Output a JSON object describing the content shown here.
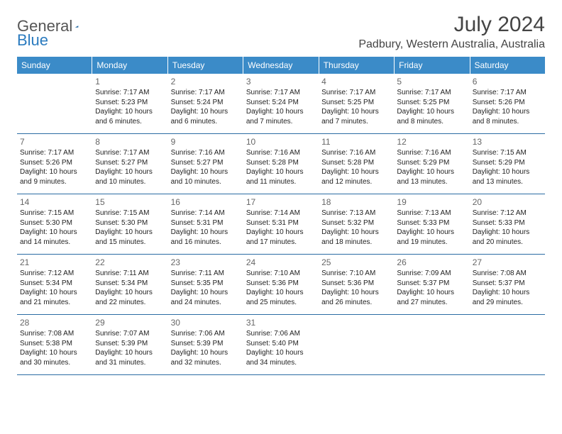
{
  "logo": {
    "text1": "General",
    "text2": "Blue"
  },
  "title": "July 2024",
  "location": "Padbury, Western Australia, Australia",
  "colors": {
    "header_bg": "#3b8bc8",
    "row_border": "#2b6ca3",
    "logo_blue": "#2b7bbf"
  },
  "day_names": [
    "Sunday",
    "Monday",
    "Tuesday",
    "Wednesday",
    "Thursday",
    "Friday",
    "Saturday"
  ],
  "weeks": [
    [
      {
        "num": "",
        "sunrise": "",
        "sunset": "",
        "daylight": ""
      },
      {
        "num": "1",
        "sunrise": "Sunrise: 7:17 AM",
        "sunset": "Sunset: 5:23 PM",
        "daylight": "Daylight: 10 hours and 6 minutes."
      },
      {
        "num": "2",
        "sunrise": "Sunrise: 7:17 AM",
        "sunset": "Sunset: 5:24 PM",
        "daylight": "Daylight: 10 hours and 6 minutes."
      },
      {
        "num": "3",
        "sunrise": "Sunrise: 7:17 AM",
        "sunset": "Sunset: 5:24 PM",
        "daylight": "Daylight: 10 hours and 7 minutes."
      },
      {
        "num": "4",
        "sunrise": "Sunrise: 7:17 AM",
        "sunset": "Sunset: 5:25 PM",
        "daylight": "Daylight: 10 hours and 7 minutes."
      },
      {
        "num": "5",
        "sunrise": "Sunrise: 7:17 AM",
        "sunset": "Sunset: 5:25 PM",
        "daylight": "Daylight: 10 hours and 8 minutes."
      },
      {
        "num": "6",
        "sunrise": "Sunrise: 7:17 AM",
        "sunset": "Sunset: 5:26 PM",
        "daylight": "Daylight: 10 hours and 8 minutes."
      }
    ],
    [
      {
        "num": "7",
        "sunrise": "Sunrise: 7:17 AM",
        "sunset": "Sunset: 5:26 PM",
        "daylight": "Daylight: 10 hours and 9 minutes."
      },
      {
        "num": "8",
        "sunrise": "Sunrise: 7:17 AM",
        "sunset": "Sunset: 5:27 PM",
        "daylight": "Daylight: 10 hours and 10 minutes."
      },
      {
        "num": "9",
        "sunrise": "Sunrise: 7:16 AM",
        "sunset": "Sunset: 5:27 PM",
        "daylight": "Daylight: 10 hours and 10 minutes."
      },
      {
        "num": "10",
        "sunrise": "Sunrise: 7:16 AM",
        "sunset": "Sunset: 5:28 PM",
        "daylight": "Daylight: 10 hours and 11 minutes."
      },
      {
        "num": "11",
        "sunrise": "Sunrise: 7:16 AM",
        "sunset": "Sunset: 5:28 PM",
        "daylight": "Daylight: 10 hours and 12 minutes."
      },
      {
        "num": "12",
        "sunrise": "Sunrise: 7:16 AM",
        "sunset": "Sunset: 5:29 PM",
        "daylight": "Daylight: 10 hours and 13 minutes."
      },
      {
        "num": "13",
        "sunrise": "Sunrise: 7:15 AM",
        "sunset": "Sunset: 5:29 PM",
        "daylight": "Daylight: 10 hours and 13 minutes."
      }
    ],
    [
      {
        "num": "14",
        "sunrise": "Sunrise: 7:15 AM",
        "sunset": "Sunset: 5:30 PM",
        "daylight": "Daylight: 10 hours and 14 minutes."
      },
      {
        "num": "15",
        "sunrise": "Sunrise: 7:15 AM",
        "sunset": "Sunset: 5:30 PM",
        "daylight": "Daylight: 10 hours and 15 minutes."
      },
      {
        "num": "16",
        "sunrise": "Sunrise: 7:14 AM",
        "sunset": "Sunset: 5:31 PM",
        "daylight": "Daylight: 10 hours and 16 minutes."
      },
      {
        "num": "17",
        "sunrise": "Sunrise: 7:14 AM",
        "sunset": "Sunset: 5:31 PM",
        "daylight": "Daylight: 10 hours and 17 minutes."
      },
      {
        "num": "18",
        "sunrise": "Sunrise: 7:13 AM",
        "sunset": "Sunset: 5:32 PM",
        "daylight": "Daylight: 10 hours and 18 minutes."
      },
      {
        "num": "19",
        "sunrise": "Sunrise: 7:13 AM",
        "sunset": "Sunset: 5:33 PM",
        "daylight": "Daylight: 10 hours and 19 minutes."
      },
      {
        "num": "20",
        "sunrise": "Sunrise: 7:12 AM",
        "sunset": "Sunset: 5:33 PM",
        "daylight": "Daylight: 10 hours and 20 minutes."
      }
    ],
    [
      {
        "num": "21",
        "sunrise": "Sunrise: 7:12 AM",
        "sunset": "Sunset: 5:34 PM",
        "daylight": "Daylight: 10 hours and 21 minutes."
      },
      {
        "num": "22",
        "sunrise": "Sunrise: 7:11 AM",
        "sunset": "Sunset: 5:34 PM",
        "daylight": "Daylight: 10 hours and 22 minutes."
      },
      {
        "num": "23",
        "sunrise": "Sunrise: 7:11 AM",
        "sunset": "Sunset: 5:35 PM",
        "daylight": "Daylight: 10 hours and 24 minutes."
      },
      {
        "num": "24",
        "sunrise": "Sunrise: 7:10 AM",
        "sunset": "Sunset: 5:36 PM",
        "daylight": "Daylight: 10 hours and 25 minutes."
      },
      {
        "num": "25",
        "sunrise": "Sunrise: 7:10 AM",
        "sunset": "Sunset: 5:36 PM",
        "daylight": "Daylight: 10 hours and 26 minutes."
      },
      {
        "num": "26",
        "sunrise": "Sunrise: 7:09 AM",
        "sunset": "Sunset: 5:37 PM",
        "daylight": "Daylight: 10 hours and 27 minutes."
      },
      {
        "num": "27",
        "sunrise": "Sunrise: 7:08 AM",
        "sunset": "Sunset: 5:37 PM",
        "daylight": "Daylight: 10 hours and 29 minutes."
      }
    ],
    [
      {
        "num": "28",
        "sunrise": "Sunrise: 7:08 AM",
        "sunset": "Sunset: 5:38 PM",
        "daylight": "Daylight: 10 hours and 30 minutes."
      },
      {
        "num": "29",
        "sunrise": "Sunrise: 7:07 AM",
        "sunset": "Sunset: 5:39 PM",
        "daylight": "Daylight: 10 hours and 31 minutes."
      },
      {
        "num": "30",
        "sunrise": "Sunrise: 7:06 AM",
        "sunset": "Sunset: 5:39 PM",
        "daylight": "Daylight: 10 hours and 32 minutes."
      },
      {
        "num": "31",
        "sunrise": "Sunrise: 7:06 AM",
        "sunset": "Sunset: 5:40 PM",
        "daylight": "Daylight: 10 hours and 34 minutes."
      },
      {
        "num": "",
        "sunrise": "",
        "sunset": "",
        "daylight": ""
      },
      {
        "num": "",
        "sunrise": "",
        "sunset": "",
        "daylight": ""
      },
      {
        "num": "",
        "sunrise": "",
        "sunset": "",
        "daylight": ""
      }
    ]
  ]
}
